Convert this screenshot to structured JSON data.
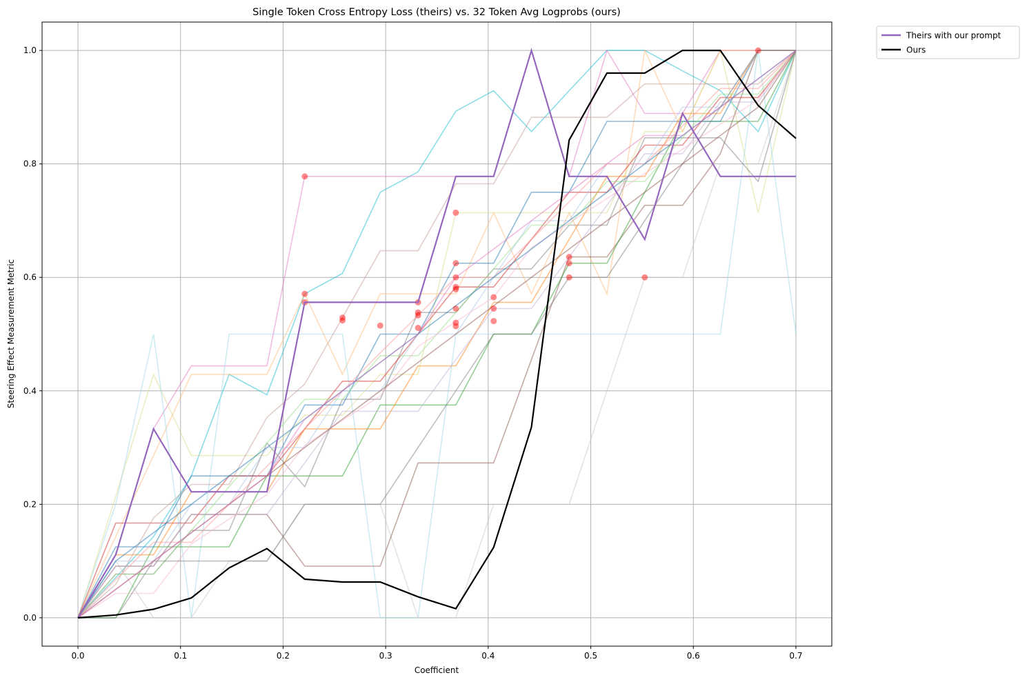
{
  "chart_data": {
    "type": "line",
    "title": "Single Token Cross Entropy Loss (theirs) vs. 32 Token Avg Logprobs (ours)",
    "xlabel": "Coefficient",
    "ylabel": "Steering Effect Measurement Metric",
    "xlim": [
      -0.035,
      0.735
    ],
    "ylim": [
      -0.05,
      1.05
    ],
    "xticks": [
      0.0,
      0.1,
      0.2,
      0.3,
      0.4,
      0.5,
      0.6,
      0.7
    ],
    "xtick_labels": [
      "0.0",
      "0.1",
      "0.2",
      "0.3",
      "0.4",
      "0.5",
      "0.6",
      "0.7"
    ],
    "yticks": [
      0.0,
      0.2,
      0.4,
      0.6,
      0.8,
      1.0
    ],
    "ytick_labels": [
      "0.0",
      "0.2",
      "0.4",
      "0.6",
      "0.8",
      "1.0"
    ],
    "grid": true,
    "legend_position": "outside-top-right",
    "x": [
      0.0,
      0.0368,
      0.0737,
      0.1105,
      0.1474,
      0.1842,
      0.2211,
      0.2579,
      0.2947,
      0.3316,
      0.3684,
      0.4053,
      0.4421,
      0.4789,
      0.5158,
      0.5526,
      0.5895,
      0.6263,
      0.6632,
      0.7
    ],
    "series": [
      {
        "name": "Theirs with our prompt",
        "color": "#9467bd",
        "highlight": true,
        "values": [
          0.0,
          0.111,
          0.333,
          0.222,
          0.222,
          0.222,
          0.556,
          0.556,
          0.556,
          0.556,
          0.778,
          0.778,
          1.0,
          0.778,
          0.778,
          0.667,
          0.889,
          0.778,
          0.778,
          0.778
        ]
      },
      {
        "name": "Ours",
        "color": "#000000",
        "highlight": true,
        "values": [
          0.0,
          0.005,
          0.015,
          0.035,
          0.088,
          0.122,
          0.068,
          0.063,
          0.063,
          0.037,
          0.016,
          0.124,
          0.336,
          0.842,
          0.96,
          0.96,
          1.0,
          1.0,
          0.903,
          0.845
        ]
      },
      {
        "color": "#17becf",
        "values": [
          0.0,
          0.071,
          0.143,
          0.25,
          0.429,
          0.393,
          0.571,
          0.607,
          0.75,
          0.786,
          0.893,
          0.929,
          0.857,
          0.929,
          1.0,
          1.0,
          0.964,
          0.929,
          0.857,
          1.0
        ]
      },
      {
        "color": "#e377c2",
        "values": [
          0.0,
          0.111,
          0.333,
          0.444,
          0.444,
          0.444,
          0.778,
          0.778,
          0.778,
          0.778,
          0.778,
          0.778,
          1.0,
          0.778,
          1.0,
          0.889,
          0.889,
          1.0,
          1.0,
          1.0
        ]
      },
      {
        "color": "#ffbb78",
        "values": [
          0.0,
          0.143,
          0.286,
          0.429,
          0.429,
          0.429,
          0.571,
          0.429,
          0.571,
          0.571,
          0.571,
          0.714,
          0.571,
          0.714,
          0.571,
          1.0,
          0.857,
          1.0,
          1.0,
          1.0
        ]
      },
      {
        "color": "#dbdb8d",
        "values": [
          0.0,
          0.214,
          0.429,
          0.286,
          0.286,
          0.286,
          0.357,
          0.357,
          0.429,
          0.429,
          0.714,
          0.714,
          0.714,
          0.714,
          0.714,
          0.857,
          0.857,
          1.0,
          0.714,
          1.0
        ]
      },
      {
        "color": "#9edae5",
        "values": [
          0.0,
          0.2,
          0.5,
          0.0,
          0.5,
          0.5,
          0.5,
          0.5,
          0.0,
          0.0,
          0.5,
          0.5,
          0.5,
          0.5,
          0.5,
          0.5,
          0.5,
          0.5,
          1.0,
          0.5
        ]
      },
      {
        "color": "#c7c7c7",
        "values": [
          0.0,
          0.1,
          0.0,
          0.0,
          0.1,
          0.1,
          0.2,
          0.2,
          0.2,
          0.0,
          0.0,
          0.2,
          0.2,
          0.2,
          0.4,
          0.6,
          0.6,
          0.8,
          0.8,
          1.0
        ]
      },
      {
        "color": "#8c564b",
        "values": [
          0.0,
          0.091,
          0.091,
          0.182,
          0.182,
          0.182,
          0.091,
          0.091,
          0.091,
          0.273,
          0.273,
          0.273,
          0.455,
          0.636,
          0.636,
          0.727,
          0.727,
          0.818,
          1.0,
          1.0
        ]
      },
      {
        "color": "#bcbd22",
        "values": [
          0.0,
          0.0,
          0.0,
          0.0,
          0.0,
          0.0,
          0.0,
          0.0,
          0.0,
          0.0,
          0.0,
          0.0,
          0.0,
          0.0,
          0.0,
          0.0,
          0.0,
          0.0,
          0.0,
          0.0
        ],
        "hidden": true
      },
      {
        "color": "#2ca02c",
        "values": [
          0.0,
          0.0,
          0.125,
          0.125,
          0.125,
          0.25,
          0.25,
          0.25,
          0.375,
          0.375,
          0.375,
          0.5,
          0.5,
          0.625,
          0.625,
          0.75,
          0.875,
          0.875,
          0.875,
          1.0
        ]
      },
      {
        "color": "#7f7f7f",
        "values": [
          0.0,
          0.077,
          0.077,
          0.154,
          0.154,
          0.308,
          0.231,
          0.385,
          0.385,
          0.538,
          0.538,
          0.615,
          0.615,
          0.692,
          0.692,
          0.846,
          0.846,
          0.846,
          0.769,
          1.0
        ]
      },
      {
        "color": "#1f77b4",
        "values": [
          0.0,
          0.125,
          0.125,
          0.25,
          0.25,
          0.25,
          0.375,
          0.375,
          0.5,
          0.5,
          0.625,
          0.625,
          0.75,
          0.75,
          0.875,
          0.875,
          0.875,
          0.875,
          1.0,
          1.0
        ]
      },
      {
        "color": "#d62728",
        "values": [
          0.0,
          0.167,
          0.167,
          0.167,
          0.25,
          0.25,
          0.333,
          0.417,
          0.417,
          0.5,
          0.583,
          0.583,
          0.667,
          0.75,
          0.75,
          0.833,
          0.833,
          0.917,
          0.917,
          1.0
        ]
      },
      {
        "color": "#ff7f0e",
        "values": [
          0.0,
          0.111,
          0.111,
          0.222,
          0.222,
          0.222,
          0.333,
          0.333,
          0.333,
          0.444,
          0.444,
          0.556,
          0.556,
          0.667,
          0.778,
          0.778,
          0.889,
          0.889,
          1.0,
          1.0
        ]
      },
      {
        "color": "#c49c94",
        "values": [
          0.0,
          0.059,
          0.176,
          0.235,
          0.235,
          0.353,
          0.412,
          0.529,
          0.647,
          0.647,
          0.765,
          0.765,
          0.882,
          0.882,
          0.882,
          0.941,
          0.941,
          0.941,
          0.941,
          1.0
        ]
      },
      {
        "color": "#aec7e8",
        "values": [
          0.0,
          0.1,
          0.1,
          0.2,
          0.2,
          0.3,
          0.3,
          0.4,
          0.4,
          0.5,
          0.5,
          0.6,
          0.7,
          0.7,
          0.8,
          0.8,
          0.9,
          0.9,
          1.0,
          1.0
        ]
      },
      {
        "color": "#98df8a",
        "values": [
          0.0,
          0.077,
          0.077,
          0.154,
          0.231,
          0.308,
          0.385,
          0.385,
          0.462,
          0.462,
          0.538,
          0.615,
          0.692,
          0.692,
          0.769,
          0.769,
          0.846,
          0.923,
          0.923,
          1.0
        ]
      },
      {
        "color": "#ff9896",
        "values": [
          0.0,
          0.067,
          0.133,
          0.133,
          0.2,
          0.267,
          0.333,
          0.4,
          0.467,
          0.533,
          0.6,
          0.6,
          0.667,
          0.733,
          0.8,
          0.8,
          0.867,
          0.933,
          0.933,
          1.0
        ]
      },
      {
        "color": "#c5b0d5",
        "values": [
          0.0,
          0.091,
          0.091,
          0.182,
          0.182,
          0.182,
          0.273,
          0.364,
          0.364,
          0.364,
          0.455,
          0.545,
          0.545,
          0.636,
          0.727,
          0.818,
          0.818,
          0.909,
          0.909,
          1.0
        ]
      },
      {
        "color": "#f7b6d2",
        "values": [
          0.0,
          0.043,
          0.043,
          0.13,
          0.174,
          0.217,
          0.304,
          0.348,
          0.391,
          0.478,
          0.522,
          0.565,
          0.652,
          0.696,
          0.739,
          0.783,
          0.826,
          0.87,
          0.913,
          1.0
        ]
      },
      {
        "color": "#7f7f7f",
        "values": [
          0.0,
          0.0,
          0.1,
          0.1,
          0.1,
          0.1,
          0.2,
          0.2,
          0.2,
          0.3,
          0.4,
          0.5,
          0.5,
          0.6,
          0.6,
          0.7,
          0.8,
          0.9,
          1.0,
          1.0
        ]
      },
      {
        "color": "#8c564b",
        "values": [
          0.0,
          0.05,
          0.1,
          0.15,
          0.2,
          0.25,
          0.3,
          0.35,
          0.4,
          0.45,
          0.5,
          0.55,
          0.6,
          0.65,
          0.7,
          0.75,
          0.8,
          0.85,
          0.9,
          1.0
        ]
      },
      {
        "color": "#1f77b4",
        "values": [
          0.0,
          0.1,
          0.15,
          0.2,
          0.25,
          0.3,
          0.35,
          0.4,
          0.45,
          0.5,
          0.55,
          0.6,
          0.65,
          0.7,
          0.75,
          0.8,
          0.85,
          0.9,
          0.95,
          1.0
        ]
      },
      {
        "color": "#e377c2",
        "values": [
          0.0,
          0.05,
          0.1,
          0.15,
          0.2,
          0.25,
          0.35,
          0.4,
          0.45,
          0.5,
          0.6,
          0.65,
          0.7,
          0.75,
          0.8,
          0.85,
          0.85,
          0.9,
          0.95,
          1.0
        ]
      }
    ],
    "markers": [
      {
        "x": 0.2211,
        "y": 0.778
      },
      {
        "x": 0.2211,
        "y": 0.571
      },
      {
        "x": 0.2211,
        "y": 0.556
      },
      {
        "x": 0.2579,
        "y": 0.529
      },
      {
        "x": 0.2579,
        "y": 0.524
      },
      {
        "x": 0.2947,
        "y": 0.515
      },
      {
        "x": 0.3316,
        "y": 0.556
      },
      {
        "x": 0.3316,
        "y": 0.538
      },
      {
        "x": 0.3316,
        "y": 0.533
      },
      {
        "x": 0.3316,
        "y": 0.511
      },
      {
        "x": 0.3684,
        "y": 0.714
      },
      {
        "x": 0.3684,
        "y": 0.625
      },
      {
        "x": 0.3684,
        "y": 0.6
      },
      {
        "x": 0.3684,
        "y": 0.583
      },
      {
        "x": 0.3684,
        "y": 0.579
      },
      {
        "x": 0.3684,
        "y": 0.545
      },
      {
        "x": 0.3684,
        "y": 0.52
      },
      {
        "x": 0.3684,
        "y": 0.514
      },
      {
        "x": 0.4053,
        "y": 0.565
      },
      {
        "x": 0.4053,
        "y": 0.545
      },
      {
        "x": 0.4053,
        "y": 0.523
      },
      {
        "x": 0.4789,
        "y": 0.636
      },
      {
        "x": 0.4789,
        "y": 0.625
      },
      {
        "x": 0.4789,
        "y": 0.6
      },
      {
        "x": 0.5526,
        "y": 0.6
      },
      {
        "x": 0.6632,
        "y": 1.0
      }
    ],
    "marker_color": "#ff0000",
    "legend": [
      "Theirs with our prompt",
      "Ours"
    ]
  }
}
